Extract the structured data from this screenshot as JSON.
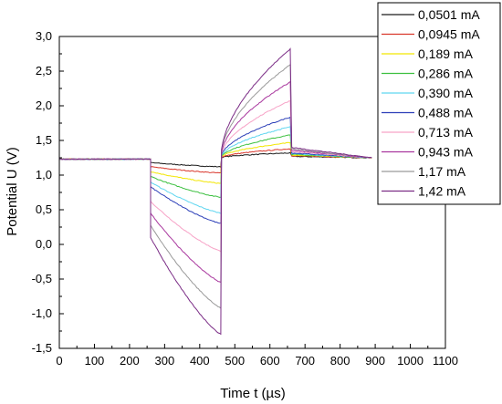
{
  "chart_data": {
    "type": "line",
    "xlabel": "Time t (µs)",
    "ylabel": "Potential U (V)",
    "xlim": [
      0,
      1100
    ],
    "ylim": [
      -1.5,
      3.0
    ],
    "x_ticks": [
      0,
      100,
      200,
      300,
      400,
      500,
      600,
      700,
      800,
      900,
      1000,
      1100
    ],
    "y_ticks": [
      -1.5,
      -1.0,
      -0.5,
      0.0,
      0.5,
      1.0,
      1.5,
      2.0,
      2.5,
      3.0
    ],
    "x_tick_labels": [
      "0",
      "100",
      "200",
      "300",
      "400",
      "500",
      "600",
      "700",
      "800",
      "900",
      "1000",
      "1100"
    ],
    "y_tick_labels": [
      "-1,5",
      "-1,0",
      "-0,5",
      "0,0",
      "0,5",
      "1,0",
      "1,5",
      "2,0",
      "2,5",
      "3,0"
    ],
    "legend_position": "top-right",
    "baseline_V": 1.23,
    "pulse_phases_us": {
      "neg_start": 260,
      "pos_start": 460,
      "pos_end": 660,
      "end": 890
    },
    "series": [
      {
        "name": "0,0501 mA",
        "color": "#1a1a1a",
        "neg_start_V": 1.18,
        "neg_end_V": 1.12,
        "pos_end_V": 1.32,
        "post_V": 1.27
      },
      {
        "name": "0,0945 mA",
        "color": "#d9362b",
        "neg_start_V": 1.12,
        "neg_end_V": 1.03,
        "pos_end_V": 1.38,
        "post_V": 1.28
      },
      {
        "name": "0,189 mA",
        "color": "#f2e600",
        "neg_start_V": 1.05,
        "neg_end_V": 0.88,
        "pos_end_V": 1.47,
        "post_V": 1.29
      },
      {
        "name": "0,286 mA",
        "color": "#3cc040",
        "neg_start_V": 0.98,
        "neg_end_V": 0.68,
        "pos_end_V": 1.58,
        "post_V": 1.3
      },
      {
        "name": "0,390 mA",
        "color": "#5fd6f0",
        "neg_start_V": 0.9,
        "neg_end_V": 0.45,
        "pos_end_V": 1.7,
        "post_V": 1.31
      },
      {
        "name": "0,488 mA",
        "color": "#2c3fb8",
        "neg_start_V": 0.83,
        "neg_end_V": 0.3,
        "pos_end_V": 1.84,
        "post_V": 1.32
      },
      {
        "name": "0,713 mA",
        "color": "#f7a3c7",
        "neg_start_V": 0.62,
        "neg_end_V": -0.1,
        "pos_end_V": 2.08,
        "post_V": 1.34
      },
      {
        "name": "0,943 mA",
        "color": "#a9379e",
        "neg_start_V": 0.45,
        "neg_end_V": -0.55,
        "pos_end_V": 2.35,
        "post_V": 1.36
      },
      {
        "name": "1,17 mA",
        "color": "#9a9a9a",
        "neg_start_V": 0.27,
        "neg_end_V": -0.92,
        "pos_end_V": 2.6,
        "post_V": 1.38
      },
      {
        "name": "1,42 mA",
        "color": "#7b2d86",
        "neg_start_V": 0.1,
        "neg_end_V": -1.3,
        "pos_end_V": 2.83,
        "post_V": 1.4
      }
    ]
  }
}
